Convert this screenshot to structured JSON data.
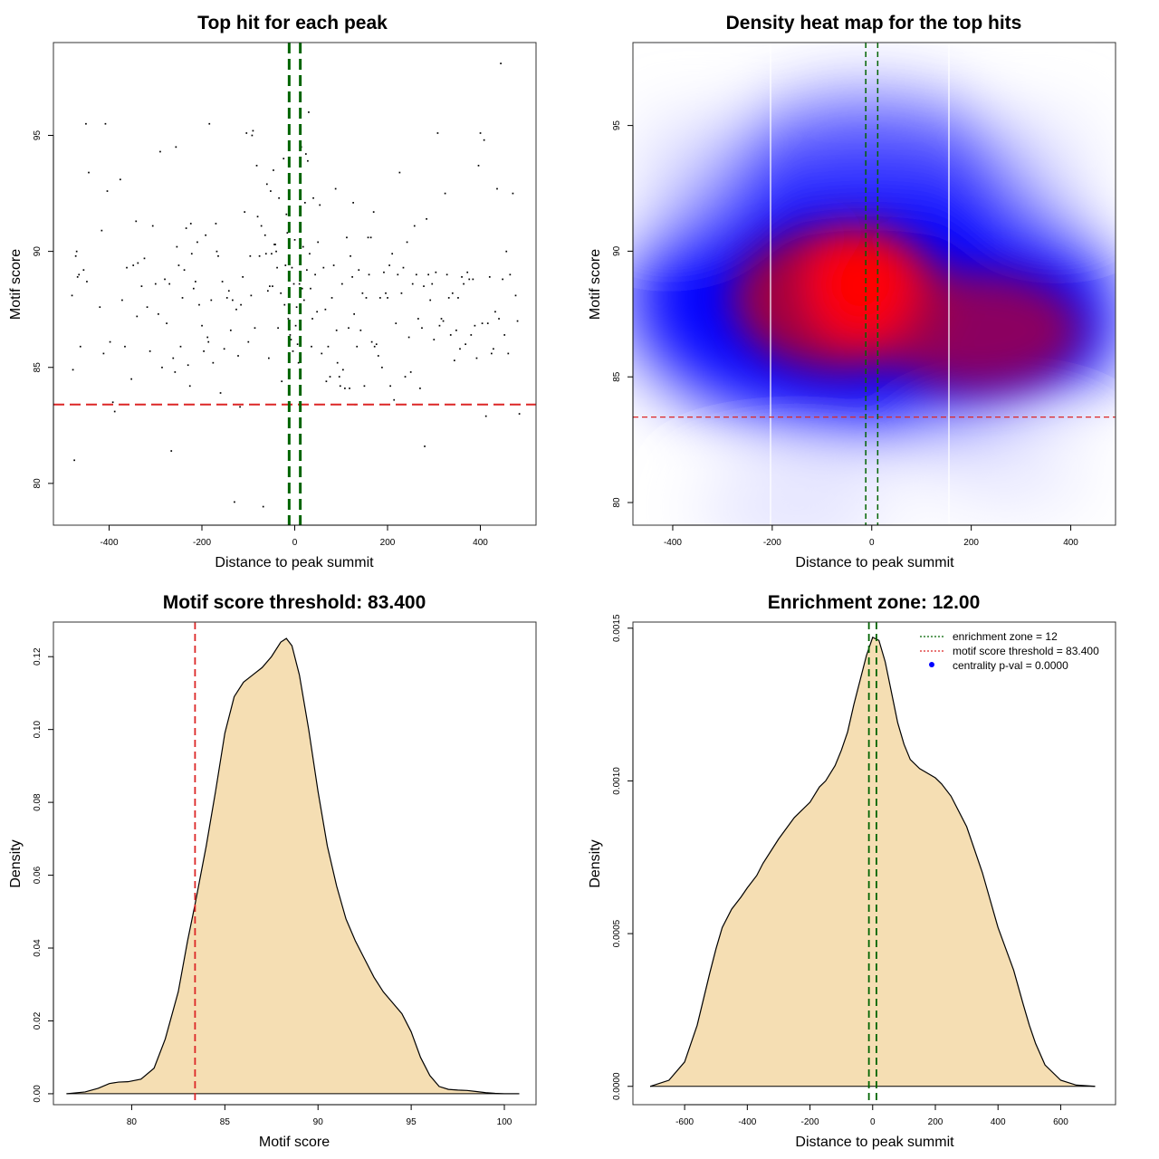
{
  "chart_data": [
    {
      "id": "scatter",
      "type": "scatter",
      "title": "Top hit for each peak",
      "xlabel": "Distance to peak summit",
      "ylabel": "Motif score",
      "xlim": [
        -520,
        520
      ],
      "ylim": [
        78.2,
        99.0
      ],
      "xticks": [
        -400,
        -200,
        0,
        200,
        400
      ],
      "yticks": [
        80,
        85,
        90,
        95
      ],
      "threshold_y": 83.4,
      "zone_x": [
        -12,
        12
      ],
      "points": [
        [
          -480,
          88.1
        ],
        [
          -478,
          84.9
        ],
        [
          -475,
          81.0
        ],
        [
          -472,
          89.8
        ],
        [
          -470,
          90.0
        ],
        [
          -468,
          88.9
        ],
        [
          -465,
          89.0
        ],
        [
          -462,
          85.9
        ],
        [
          -455,
          89.2
        ],
        [
          -450,
          95.5
        ],
        [
          -448,
          88.7
        ],
        [
          -444,
          93.4
        ],
        [
          -420,
          87.6
        ],
        [
          -416,
          90.9
        ],
        [
          -412,
          85.6
        ],
        [
          -408,
          95.5
        ],
        [
          -404,
          92.6
        ],
        [
          -398,
          86.1
        ],
        [
          -392,
          83.5
        ],
        [
          -388,
          83.1
        ],
        [
          -376,
          93.1
        ],
        [
          -372,
          87.9
        ],
        [
          -366,
          85.9
        ],
        [
          -362,
          89.3
        ],
        [
          -352,
          84.5
        ],
        [
          -348,
          89.4
        ],
        [
          -342,
          91.3
        ],
        [
          -340,
          87.2
        ],
        [
          -338,
          89.5
        ],
        [
          -330,
          88.5
        ],
        [
          -324,
          89.7
        ],
        [
          -318,
          87.6
        ],
        [
          -312,
          85.7
        ],
        [
          -306,
          91.1
        ],
        [
          -300,
          88.6
        ],
        [
          -294,
          87.3
        ],
        [
          -290,
          94.3
        ],
        [
          -286,
          85.0
        ],
        [
          -280,
          88.8
        ],
        [
          -276,
          86.9
        ],
        [
          -270,
          88.6
        ],
        [
          -266,
          81.4
        ],
        [
          -262,
          85.4
        ],
        [
          -258,
          84.8
        ],
        [
          -256,
          94.5
        ],
        [
          -254,
          90.2
        ],
        [
          -250,
          89.4
        ],
        [
          -246,
          85.9
        ],
        [
          -242,
          88.0
        ],
        [
          -238,
          89.2
        ],
        [
          -234,
          91.0
        ],
        [
          -230,
          85.1
        ],
        [
          -226,
          84.2
        ],
        [
          -224,
          91.2
        ],
        [
          -222,
          89.9
        ],
        [
          -218,
          88.4
        ],
        [
          -214,
          88.7
        ],
        [
          -210,
          90.4
        ],
        [
          -206,
          87.7
        ],
        [
          -200,
          86.8
        ],
        [
          -196,
          85.7
        ],
        [
          -192,
          90.7
        ],
        [
          -188,
          86.3
        ],
        [
          -186,
          86.1
        ],
        [
          -184,
          95.5
        ],
        [
          -180,
          87.9
        ],
        [
          -176,
          85.2
        ],
        [
          -170,
          91.2
        ],
        [
          -168,
          90.0
        ],
        [
          -165,
          89.8
        ],
        [
          -160,
          83.9
        ],
        [
          -156,
          88.7
        ],
        [
          -152,
          85.8
        ],
        [
          -146,
          88.0
        ],
        [
          -142,
          88.3
        ],
        [
          -138,
          86.6
        ],
        [
          -134,
          87.9
        ],
        [
          -130,
          79.2
        ],
        [
          -126,
          87.5
        ],
        [
          -122,
          85.5
        ],
        [
          -118,
          83.3
        ],
        [
          -116,
          87.7
        ],
        [
          -112,
          88.9
        ],
        [
          -108,
          91.7
        ],
        [
          -104,
          95.1
        ],
        [
          -100,
          86.1
        ],
        [
          -96,
          89.8
        ],
        [
          -94,
          88.1
        ],
        [
          -92,
          95.0
        ],
        [
          -90,
          95.2
        ],
        [
          -86,
          86.7
        ],
        [
          -82,
          93.7
        ],
        [
          -80,
          91.5
        ],
        [
          -76,
          89.8
        ],
        [
          -72,
          91.1
        ],
        [
          -68,
          79.0
        ],
        [
          -64,
          90.7
        ],
        [
          -62,
          89.9
        ],
        [
          -60,
          92.9
        ],
        [
          -58,
          88.3
        ],
        [
          -56,
          85.4
        ],
        [
          -54,
          88.5
        ],
        [
          -52,
          92.6
        ],
        [
          -50,
          89.9
        ],
        [
          -48,
          88.5
        ],
        [
          -46,
          93.5
        ],
        [
          -44,
          90.3
        ],
        [
          -42,
          90.3
        ],
        [
          -40,
          90.0
        ],
        [
          -38,
          89.3
        ],
        [
          -36,
          86.7
        ],
        [
          -34,
          92.3
        ],
        [
          -30,
          88.2
        ],
        [
          -28,
          84.4
        ],
        [
          -24,
          94.0
        ],
        [
          -22,
          87.7
        ],
        [
          -20,
          89.4
        ],
        [
          -18,
          91.6
        ],
        [
          -16,
          90.8
        ],
        [
          -14,
          87.1
        ],
        [
          -12,
          84.7
        ],
        [
          -10,
          86.4
        ],
        [
          -8,
          86.2
        ],
        [
          -6,
          89.3
        ],
        [
          -4,
          85.7
        ],
        [
          -2,
          88.6
        ],
        [
          0,
          90.5
        ],
        [
          2,
          86.8
        ],
        [
          4,
          87.6
        ],
        [
          6,
          86.0
        ],
        [
          8,
          85.2
        ],
        [
          10,
          88.6
        ],
        [
          12,
          95.9
        ],
        [
          14,
          94.5
        ],
        [
          16,
          88.4
        ],
        [
          18,
          90.2
        ],
        [
          20,
          87.9
        ],
        [
          22,
          92.1
        ],
        [
          24,
          94.2
        ],
        [
          26,
          89.2
        ],
        [
          28,
          93.9
        ],
        [
          30,
          96.0
        ],
        [
          32,
          89.9
        ],
        [
          34,
          88.4
        ],
        [
          36,
          85.9
        ],
        [
          38,
          87.1
        ],
        [
          40,
          92.3
        ],
        [
          44,
          89.0
        ],
        [
          48,
          87.4
        ],
        [
          50,
          90.4
        ],
        [
          54,
          92.0
        ],
        [
          58,
          85.6
        ],
        [
          62,
          89.3
        ],
        [
          66,
          87.5
        ],
        [
          68,
          84.4
        ],
        [
          72,
          85.9
        ],
        [
          76,
          84.6
        ],
        [
          80,
          88.0
        ],
        [
          84,
          89.4
        ],
        [
          88,
          92.7
        ],
        [
          90,
          86.6
        ],
        [
          92,
          85.2
        ],
        [
          96,
          84.6
        ],
        [
          98,
          84.2
        ],
        [
          102,
          88.6
        ],
        [
          104,
          84.9
        ],
        [
          108,
          84.1
        ],
        [
          112,
          90.6
        ],
        [
          116,
          86.7
        ],
        [
          118,
          84.1
        ],
        [
          120,
          89.8
        ],
        [
          124,
          88.9
        ],
        [
          126,
          92.1
        ],
        [
          128,
          87.3
        ],
        [
          130,
          83.4
        ],
        [
          134,
          85.9
        ],
        [
          138,
          89.2
        ],
        [
          142,
          86.6
        ],
        [
          146,
          88.2
        ],
        [
          150,
          84.2
        ],
        [
          154,
          88.0
        ],
        [
          158,
          90.6
        ],
        [
          160,
          89.0
        ],
        [
          164,
          90.6
        ],
        [
          166,
          86.1
        ],
        [
          170,
          91.7
        ],
        [
          172,
          85.9
        ],
        [
          176,
          86.0
        ],
        [
          180,
          85.5
        ],
        [
          184,
          88.0
        ],
        [
          188,
          85.0
        ],
        [
          192,
          89.1
        ],
        [
          196,
          88.2
        ],
        [
          200,
          88.0
        ],
        [
          204,
          89.4
        ],
        [
          206,
          84.2
        ],
        [
          210,
          89.9
        ],
        [
          214,
          83.6
        ],
        [
          218,
          86.9
        ],
        [
          222,
          89.0
        ],
        [
          226,
          93.4
        ],
        [
          230,
          88.2
        ],
        [
          234,
          89.3
        ],
        [
          238,
          84.6
        ],
        [
          242,
          90.4
        ],
        [
          246,
          86.3
        ],
        [
          250,
          84.8
        ],
        [
          254,
          88.6
        ],
        [
          258,
          91.1
        ],
        [
          262,
          89.0
        ],
        [
          266,
          87.1
        ],
        [
          270,
          84.1
        ],
        [
          274,
          86.7
        ],
        [
          278,
          88.5
        ],
        [
          280,
          81.6
        ],
        [
          284,
          91.4
        ],
        [
          288,
          89.0
        ],
        [
          292,
          87.9
        ],
        [
          296,
          88.6
        ],
        [
          300,
          86.2
        ],
        [
          304,
          89.1
        ],
        [
          308,
          95.1
        ],
        [
          312,
          86.8
        ],
        [
          316,
          87.1
        ],
        [
          320,
          87.0
        ],
        [
          324,
          92.5
        ],
        [
          328,
          89.0
        ],
        [
          332,
          88.0
        ],
        [
          336,
          86.4
        ],
        [
          340,
          88.2
        ],
        [
          344,
          85.3
        ],
        [
          348,
          86.6
        ],
        [
          352,
          88.0
        ],
        [
          356,
          85.8
        ],
        [
          360,
          88.9
        ],
        [
          364,
          88.6
        ],
        [
          368,
          86.0
        ],
        [
          372,
          89.1
        ],
        [
          376,
          88.8
        ],
        [
          380,
          86.4
        ],
        [
          384,
          88.8
        ],
        [
          388,
          86.8
        ],
        [
          392,
          85.4
        ],
        [
          396,
          93.7
        ],
        [
          400,
          95.1
        ],
        [
          404,
          86.9
        ],
        [
          408,
          94.8
        ],
        [
          412,
          82.9
        ],
        [
          416,
          86.9
        ],
        [
          420,
          88.9
        ],
        [
          424,
          85.6
        ],
        [
          428,
          85.8
        ],
        [
          432,
          87.4
        ],
        [
          436,
          92.7
        ],
        [
          440,
          87.1
        ],
        [
          444,
          98.1
        ],
        [
          448,
          88.8
        ],
        [
          452,
          86.4
        ],
        [
          456,
          90.0
        ],
        [
          460,
          85.6
        ],
        [
          464,
          89.0
        ],
        [
          470,
          92.5
        ],
        [
          476,
          88.1
        ],
        [
          480,
          87.0
        ],
        [
          484,
          83.0
        ]
      ]
    },
    {
      "id": "heatmap",
      "type": "heatmap",
      "title": "Density heat map for the top hits",
      "xlabel": "Distance to peak summit",
      "ylabel": "Motif score",
      "xlim": [
        -480,
        490
      ],
      "ylim": [
        79.1,
        98.3
      ],
      "xticks": [
        -400,
        -200,
        0,
        200,
        400
      ],
      "yticks": [
        80,
        85,
        90,
        95
      ],
      "threshold_y": 83.4,
      "zone_x": [
        -12,
        12
      ],
      "colors": [
        "#ffffff",
        "#0000ff",
        "#ff0000"
      ]
    },
    {
      "id": "density_score",
      "type": "area",
      "title": "Motif score threshold: 83.400",
      "xlabel": "Motif score",
      "ylabel": "Density",
      "xlim": [
        75.8,
        101.7
      ],
      "ylim": [
        -0.003,
        0.1295
      ],
      "xticks": [
        80,
        85,
        90,
        95,
        100
      ],
      "yticks": [
        0.0,
        0.02,
        0.04,
        0.06,
        0.08,
        0.1,
        0.12
      ],
      "ytick_labels": [
        "0.00",
        "0.02",
        "0.04",
        "0.06",
        "0.08",
        "0.10",
        "0.12"
      ],
      "threshold_x": 83.4,
      "x": [
        76.5,
        77.5,
        78.2,
        78.8,
        79.3,
        79.8,
        80.5,
        81.2,
        81.8,
        82.5,
        83.0,
        83.4,
        84.0,
        84.5,
        85.0,
        85.5,
        86.0,
        86.5,
        87.0,
        87.5,
        88.0,
        88.3,
        88.6,
        89.0,
        89.5,
        90.0,
        90.5,
        91.0,
        91.5,
        92.0,
        92.5,
        93.0,
        93.5,
        94.0,
        94.5,
        95.0,
        95.5,
        96.0,
        96.5,
        97.0,
        97.5,
        98.0,
        98.5,
        99.0,
        99.5,
        100.0,
        100.8
      ],
      "y": [
        0.0,
        0.0005,
        0.0015,
        0.0028,
        0.0032,
        0.0033,
        0.004,
        0.007,
        0.015,
        0.028,
        0.042,
        0.052,
        0.068,
        0.083,
        0.099,
        0.109,
        0.113,
        0.115,
        0.117,
        0.12,
        0.124,
        0.125,
        0.123,
        0.115,
        0.1,
        0.083,
        0.068,
        0.057,
        0.048,
        0.042,
        0.037,
        0.032,
        0.028,
        0.025,
        0.022,
        0.017,
        0.01,
        0.005,
        0.002,
        0.0012,
        0.001,
        0.0009,
        0.0006,
        0.0003,
        0.0001,
        0.0,
        0.0
      ],
      "fill": "#f5deb3"
    },
    {
      "id": "density_distance",
      "type": "area",
      "title": "Enrichment zone: 12.00",
      "xlabel": "Distance to peak summit",
      "ylabel": "Density",
      "xlim": [
        -765,
        775
      ],
      "ylim": [
        -6e-05,
        0.00152
      ],
      "xticks": [
        -600,
        -400,
        -200,
        0,
        200,
        400,
        600
      ],
      "yticks": [
        0.0,
        0.0005,
        0.001,
        0.0015
      ],
      "ytick_labels": [
        "0.0000",
        "0.0005",
        "0.0010",
        "0.0015"
      ],
      "zone_x": [
        -12,
        12
      ],
      "x": [
        -710,
        -650,
        -600,
        -560,
        -520,
        -500,
        -480,
        -450,
        -420,
        -400,
        -370,
        -350,
        -300,
        -250,
        -200,
        -170,
        -150,
        -120,
        -100,
        -80,
        -60,
        -40,
        -20,
        0,
        20,
        40,
        60,
        80,
        100,
        120,
        150,
        200,
        220,
        250,
        300,
        350,
        400,
        450,
        480,
        500,
        520,
        550,
        600,
        650,
        710
      ],
      "y": [
        0.0,
        2e-05,
        8e-05,
        0.0002,
        0.00037,
        0.00045,
        0.00052,
        0.00058,
        0.00062,
        0.00065,
        0.00069,
        0.00073,
        0.00081,
        0.00088,
        0.00093,
        0.00098,
        0.001,
        0.00105,
        0.0011,
        0.00116,
        0.00125,
        0.00133,
        0.00141,
        0.00147,
        0.00146,
        0.00139,
        0.00129,
        0.00119,
        0.00112,
        0.00107,
        0.00104,
        0.00101,
        0.00099,
        0.00095,
        0.00085,
        0.0007,
        0.00052,
        0.00038,
        0.00027,
        0.0002,
        0.00014,
        7e-05,
        2e-05,
        4e-06,
        0.0
      ],
      "fill": "#f5deb3",
      "legend": [
        {
          "label": "enrichment zone = 12",
          "color": "#006400",
          "symbol": "line"
        },
        {
          "label": "motif score threshold = 83.400",
          "color": "#dc2626",
          "symbol": "line"
        },
        {
          "label": "centrality p-val = 0.0000",
          "color": "#0000ff",
          "symbol": "dot"
        }
      ],
      "legend_position": "top-right"
    }
  ]
}
